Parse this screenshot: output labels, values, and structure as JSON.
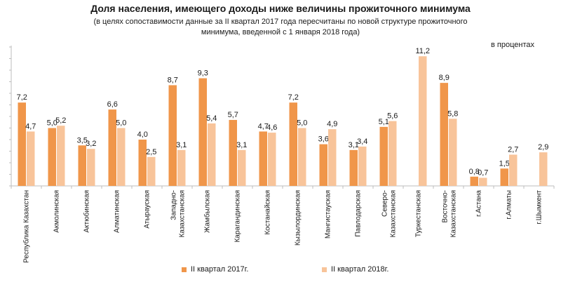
{
  "chart_data": {
    "type": "bar",
    "title": "Доля населения, имеющего доходы ниже величины  прожиточного  минимума",
    "subtitle_lines": [
      "(в целях сопоставимости данные за II квартал 2017 года пересчитаны по новой структуре прожиточного",
      "минимума, введенной с 1 января 2018 года)"
    ],
    "units": "в процентах",
    "ylim": [
      0,
      12
    ],
    "categories": [
      [
        "Республика Казахстан"
      ],
      [
        "Акмолинская"
      ],
      [
        "Актюбинская"
      ],
      [
        "Алматинская"
      ],
      [
        "Атырауская"
      ],
      [
        "Западно-",
        "Казахстанская"
      ],
      [
        "Жамбылская"
      ],
      [
        "Карагандинская"
      ],
      [
        "Костанайская"
      ],
      [
        "Кызылординская"
      ],
      [
        "Мангистауская"
      ],
      [
        "Павлодарская"
      ],
      [
        "Северо-",
        "Казахстанская"
      ],
      [
        "Туркестанская"
      ],
      [
        "Восточно-",
        "Казахстанская"
      ],
      [
        "г.Астана"
      ],
      [
        "г.Алматы"
      ],
      [
        "г.Шымкент"
      ]
    ],
    "series": [
      {
        "name": "II квартал 2017г.",
        "color": "#f0964a",
        "values": [
          7.2,
          5.0,
          3.5,
          6.6,
          4.0,
          8.7,
          9.3,
          5.7,
          4.7,
          7.2,
          3.6,
          3.1,
          5.1,
          null,
          8.9,
          0.8,
          1.5,
          null
        ],
        "labels": [
          "7,2",
          "5,0",
          "3,5",
          "6,6",
          "4,0",
          "8,7",
          "9,3",
          "5,7",
          "4,7",
          "7,2",
          "3,6",
          "3,1",
          "5,1",
          "",
          "8,9",
          "0,8",
          "1,5",
          ""
        ]
      },
      {
        "name": "II квартал 2018г.",
        "color": "#f8c49a",
        "values": [
          4.7,
          5.2,
          3.2,
          5.0,
          2.5,
          3.1,
          5.4,
          3.1,
          4.6,
          5.0,
          4.9,
          3.4,
          5.6,
          11.2,
          5.8,
          0.7,
          2.7,
          2.9
        ],
        "labels": [
          "4,7",
          "5,2",
          "3,2",
          "5,0",
          "2,5",
          "3,1",
          "5,4",
          "3,1",
          "4,6",
          "5,0",
          "4,9",
          "3,4",
          "5,6",
          "11,2",
          "5,8",
          "0,7",
          "2,7",
          "2,9"
        ]
      }
    ]
  }
}
